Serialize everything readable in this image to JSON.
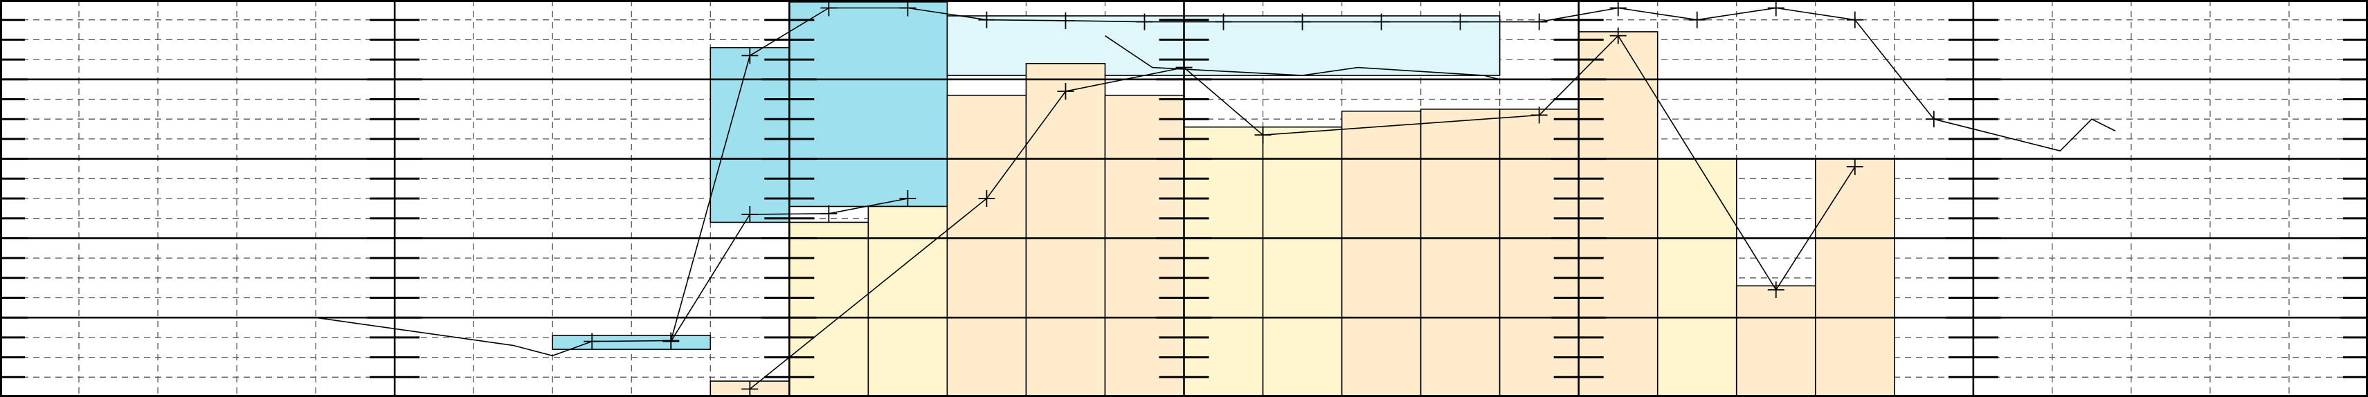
{
  "chart_data": {
    "type": "combo",
    "title": "",
    "xlabel": "",
    "ylabel": "",
    "xlim": [
      0,
      30
    ],
    "ylim": [
      0,
      10
    ],
    "grid": true,
    "legend": "none",
    "series": [
      {
        "kind": "bar",
        "color": "#9ee0ee",
        "bars": [
          {
            "x0": 7,
            "x1": 9,
            "bottom": 1.2,
            "top": 1.55
          },
          {
            "x0": 9,
            "x1": 10,
            "bottom": 4.4,
            "top": 8.8
          },
          {
            "x0": 10,
            "x1": 12,
            "bottom": 4.8,
            "top": 9.95
          }
        ]
      },
      {
        "kind": "bar",
        "color": "#dff7fb",
        "bars": [
          {
            "x0": 12,
            "x1": 19,
            "bottom": 8.1,
            "top": 9.6
          }
        ]
      },
      {
        "kind": "bar",
        "color": "#fff6cf",
        "bars": [
          {
            "x0": 10,
            "x1": 11,
            "bottom": 0,
            "top": 4.4
          },
          {
            "x0": 11,
            "x1": 12,
            "bottom": 0,
            "top": 4.8
          },
          {
            "x0": 15,
            "x1": 16,
            "bottom": 0,
            "top": 6.8
          },
          {
            "x0": 16,
            "x1": 17,
            "bottom": 0,
            "top": 6.8
          },
          {
            "x0": 21,
            "x1": 22,
            "bottom": 0,
            "top": 6.0
          }
        ]
      },
      {
        "kind": "bar",
        "color": "#ffeccc",
        "bars": [
          {
            "x0": 9,
            "x1": 10,
            "bottom": 0,
            "top": 0.4
          },
          {
            "x0": 12,
            "x1": 13,
            "bottom": 0,
            "top": 7.6
          },
          {
            "x0": 13,
            "x1": 14,
            "bottom": 0,
            "top": 8.4
          },
          {
            "x0": 14,
            "x1": 15,
            "bottom": 0,
            "top": 7.6
          },
          {
            "x0": 17,
            "x1": 18,
            "bottom": 0,
            "top": 7.2
          },
          {
            "x0": 18,
            "x1": 19,
            "bottom": 0,
            "top": 7.25
          },
          {
            "x0": 19,
            "x1": 20,
            "bottom": 0,
            "top": 7.25
          },
          {
            "x0": 20,
            "x1": 21,
            "bottom": 0,
            "top": 9.2
          },
          {
            "x0": 22,
            "x1": 23,
            "bottom": 0,
            "top": 2.8
          },
          {
            "x0": 23,
            "x1": 24,
            "bottom": 0,
            "top": 6.0
          }
        ]
      },
      {
        "kind": "line",
        "marker": true,
        "points": [
          [
            9.5,
            0.2
          ],
          [
            12.5,
            5.0
          ],
          [
            13.5,
            7.7
          ],
          [
            15,
            8.3
          ],
          [
            16,
            6.6
          ],
          [
            19.5,
            7.1
          ],
          [
            20.5,
            9.1
          ],
          [
            22.5,
            2.7
          ],
          [
            23.5,
            5.8
          ]
        ]
      },
      {
        "kind": "line",
        "marker": true,
        "points": [
          [
            7.5,
            1.4
          ],
          [
            8.5,
            1.42
          ],
          [
            9.5,
            8.6
          ],
          [
            10.5,
            9.8
          ],
          [
            11.5,
            9.8
          ],
          [
            12.5,
            9.5
          ],
          [
            13.5,
            9.48
          ],
          [
            14.5,
            9.45
          ],
          [
            15.5,
            9.45
          ],
          [
            16.5,
            9.45
          ],
          [
            17.5,
            9.45
          ],
          [
            18.5,
            9.45
          ],
          [
            19.5,
            9.45
          ],
          [
            20.5,
            9.8
          ],
          [
            21.5,
            9.5
          ],
          [
            22.5,
            9.8
          ],
          [
            23.5,
            9.5
          ],
          [
            24.5,
            7.0
          ]
        ]
      },
      {
        "kind": "line",
        "marker": true,
        "points": [
          [
            8.5,
            1.4
          ],
          [
            9.5,
            4.6
          ],
          [
            10.5,
            4.62
          ],
          [
            11.5,
            5.0
          ]
        ]
      },
      {
        "kind": "line",
        "marker": false,
        "points": [
          [
            4,
            2.0
          ],
          [
            6.5,
            1.3
          ],
          [
            7,
            1.04
          ],
          [
            7.5,
            1.4
          ]
        ]
      },
      {
        "kind": "line",
        "marker": false,
        "points": [
          [
            14,
            9.1
          ],
          [
            14.6,
            8.3
          ],
          [
            16.5,
            8.1
          ],
          [
            17.2,
            8.3
          ],
          [
            18,
            8.2
          ],
          [
            18.8,
            8.1
          ],
          [
            19.0,
            8.0
          ]
        ]
      },
      {
        "kind": "line",
        "marker": false,
        "points": [
          [
            24.5,
            7.0
          ],
          [
            26.1,
            6.2
          ],
          [
            26.5,
            7.0
          ],
          [
            26.8,
            6.7
          ]
        ]
      }
    ]
  }
}
